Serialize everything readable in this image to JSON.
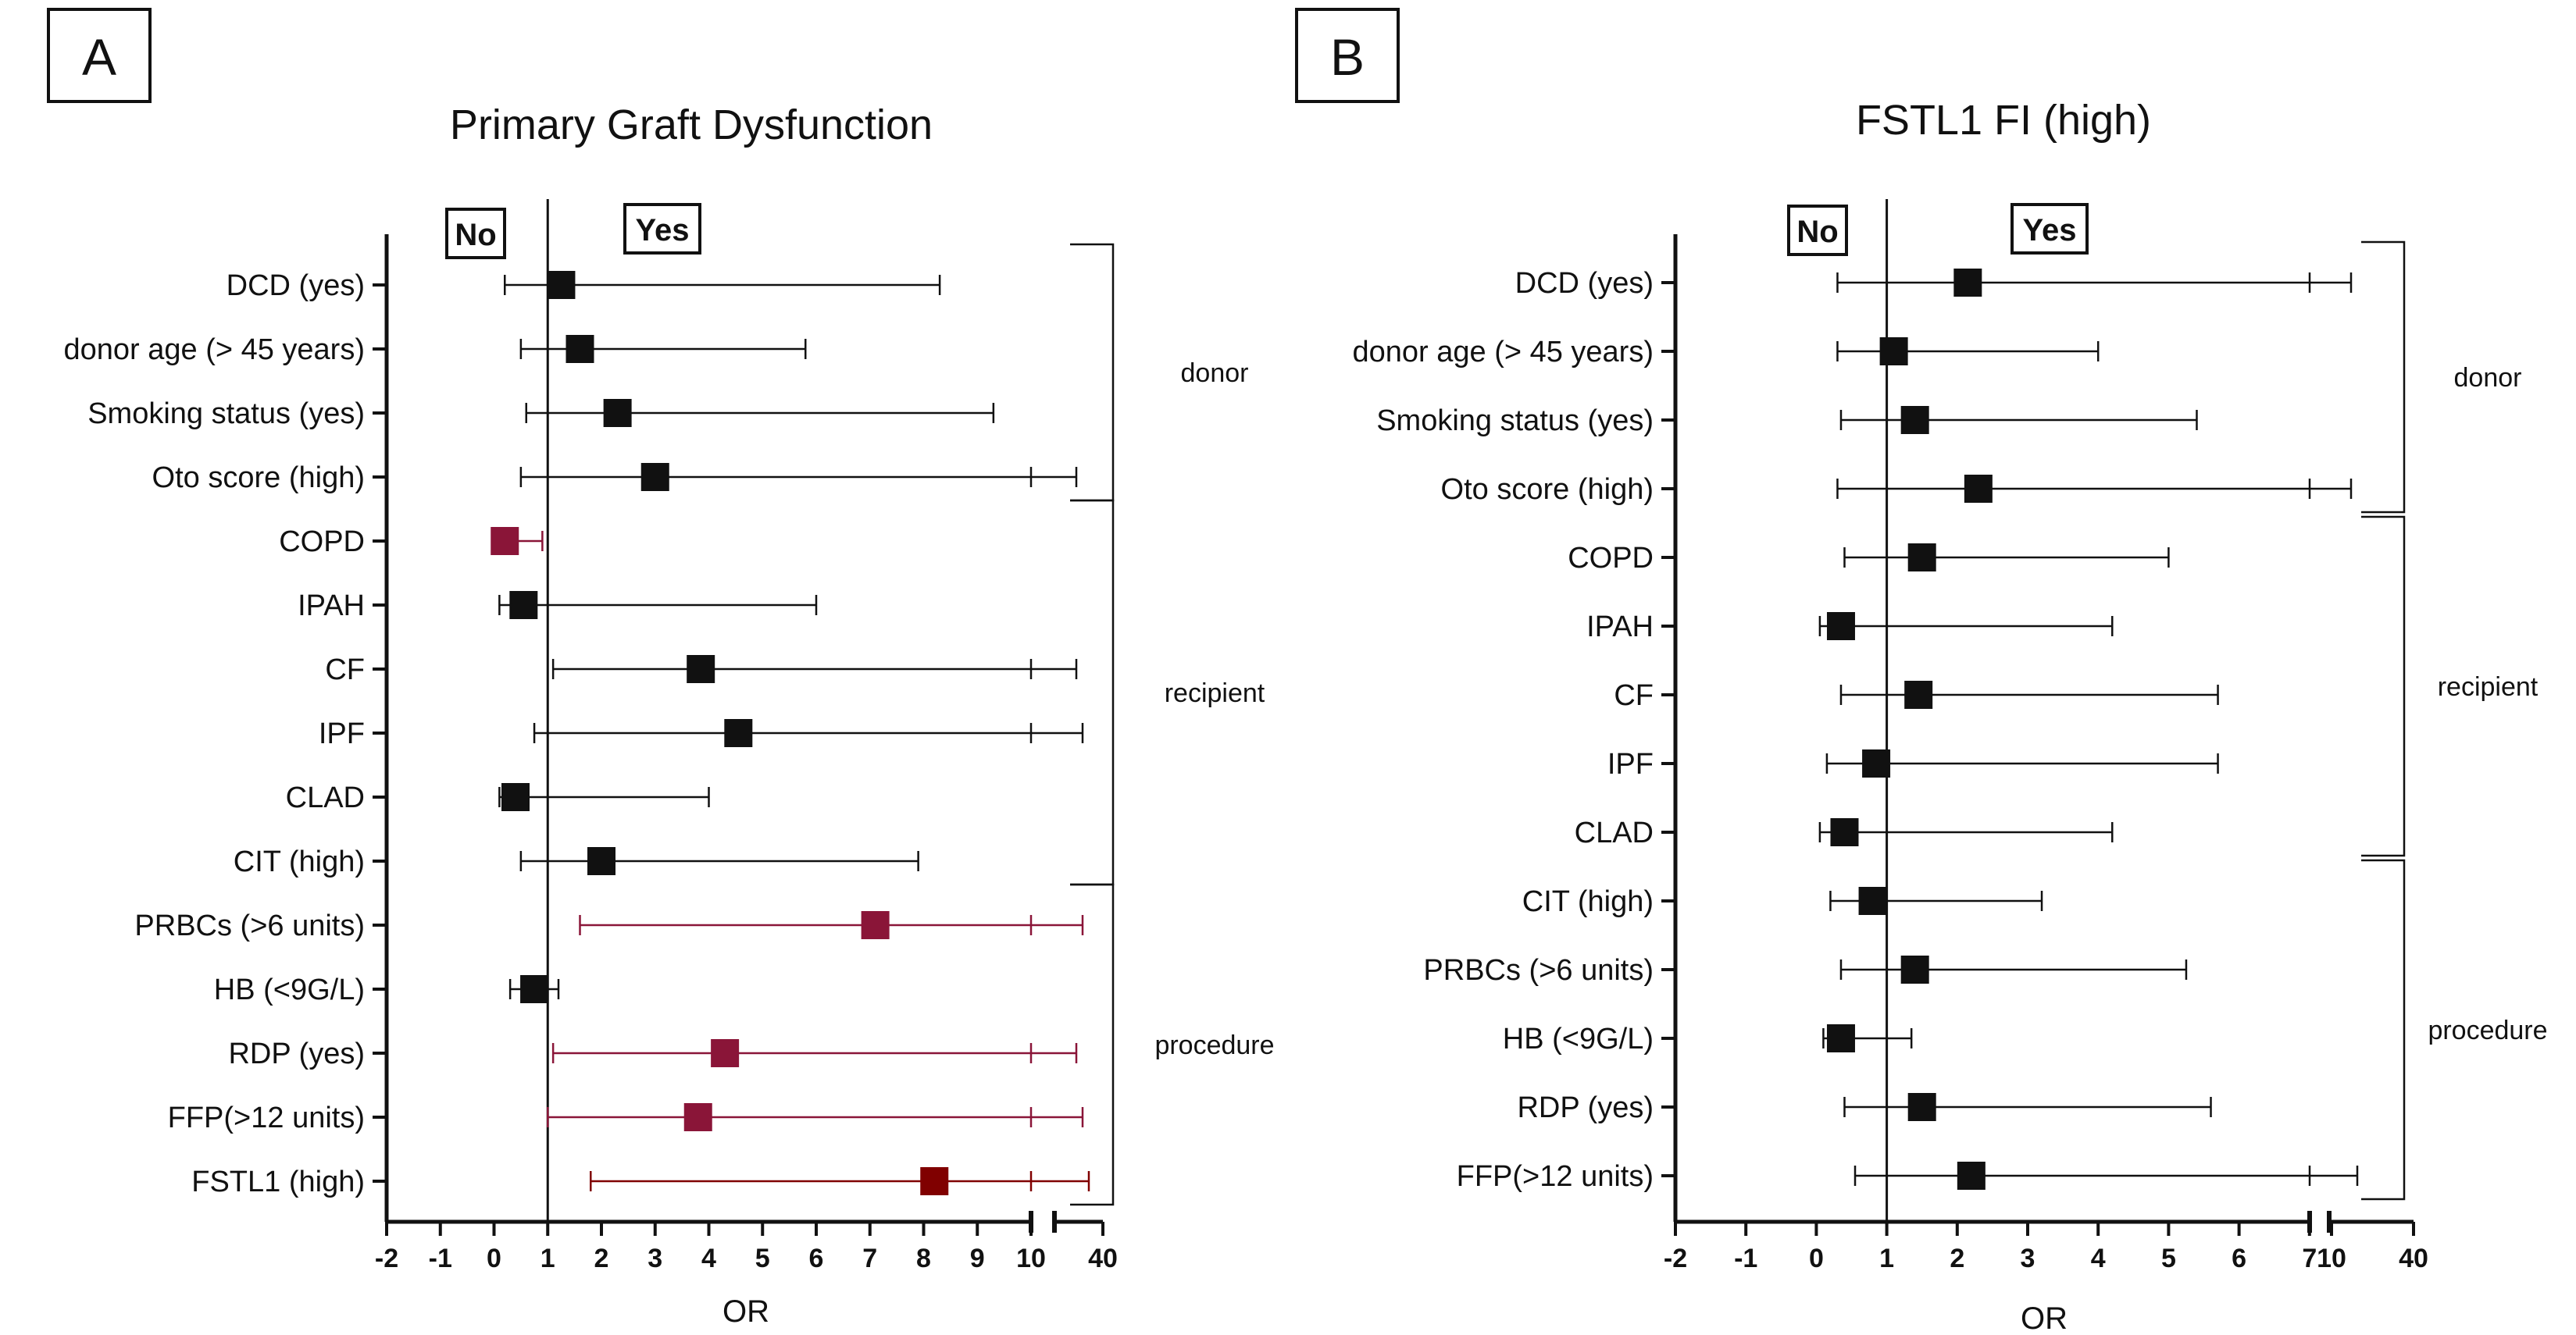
{
  "colors": {
    "black": "#111111",
    "highlight": "#8a1538",
    "highlight_dark": "#800000"
  },
  "panels": [
    {
      "id": "A",
      "letter": "A",
      "title": "Primary Graft Dysfunction",
      "no_label": "No",
      "yes_label": "Yes",
      "xlabel": "OR",
      "ticks_main": [
        "-2",
        "-1",
        "0",
        "1",
        "2",
        "3",
        "4",
        "5",
        "6",
        "7",
        "8",
        "9",
        "10"
      ],
      "ticks_ext": [
        "40"
      ],
      "groups": [
        {
          "label": "donor",
          "first": 0,
          "last": 3
        },
        {
          "label": "recipient",
          "first": 4,
          "last": 9
        },
        {
          "label": "procedure",
          "first": 10,
          "last": 14
        }
      ]
    },
    {
      "id": "B",
      "letter": "B",
      "title": "FSTL1 FI (high)",
      "no_label": "No",
      "yes_label": "Yes",
      "xlabel": "OR",
      "ticks_main": [
        "-2",
        "-1",
        "0",
        "1",
        "2",
        "3",
        "4",
        "5",
        "6",
        "7"
      ],
      "ticks_ext": [
        "10",
        "40"
      ],
      "groups": [
        {
          "label": "donor",
          "first": 0,
          "last": 3
        },
        {
          "label": "recipient",
          "first": 4,
          "last": 8
        },
        {
          "label": "procedure",
          "first": 9,
          "last": 13
        }
      ]
    }
  ],
  "chart_data": [
    {
      "type": "forest",
      "title": "Primary Graft Dysfunction",
      "xlabel": "OR",
      "xlim": [
        -2,
        10
      ],
      "x_break": [
        10,
        40
      ],
      "reference_line": 1,
      "rows": [
        {
          "label": "DCD (yes)",
          "or": 1.25,
          "lo": 0.2,
          "hi": 8.3,
          "hi_arrow": false,
          "color": "black"
        },
        {
          "label": "donor age (> 45 years)",
          "or": 1.6,
          "lo": 0.5,
          "hi": 5.8,
          "hi_arrow": false,
          "color": "black"
        },
        {
          "label": "Smoking status (yes)",
          "or": 2.3,
          "lo": 0.6,
          "hi": 9.3,
          "hi_arrow": false,
          "color": "black"
        },
        {
          "label": "Oto score (high)",
          "or": 3.0,
          "lo": 0.5,
          "hi": 10,
          "hi_arrow": true,
          "color": "black"
        },
        {
          "label": "COPD",
          "or": 0.2,
          "lo": 0.05,
          "hi": 0.9,
          "hi_arrow": false,
          "color": "highlight"
        },
        {
          "label": "IPAH",
          "or": 0.55,
          "lo": 0.1,
          "hi": 6.0,
          "hi_arrow": false,
          "color": "black"
        },
        {
          "label": "CF",
          "or": 3.85,
          "lo": 1.1,
          "hi": 10,
          "hi_arrow": true,
          "color": "black"
        },
        {
          "label": "IPF",
          "or": 4.55,
          "lo": 0.75,
          "hi": 10,
          "hi_arrow": true,
          "color": "black"
        },
        {
          "label": "CLAD",
          "or": 0.4,
          "lo": 0.1,
          "hi": 4.0,
          "hi_arrow": false,
          "color": "black"
        },
        {
          "label": "CIT (high)",
          "or": 2.0,
          "lo": 0.5,
          "hi": 7.9,
          "hi_arrow": false,
          "color": "black"
        },
        {
          "label": "PRBCs (>6 units)",
          "or": 7.1,
          "lo": 1.6,
          "hi": 10,
          "hi_arrow": true,
          "color": "highlight"
        },
        {
          "label": "HB (<9G/L)",
          "or": 0.75,
          "lo": 0.3,
          "hi": 1.2,
          "hi_arrow": false,
          "color": "black"
        },
        {
          "label": "RDP (yes)",
          "or": 4.3,
          "lo": 1.1,
          "hi": 10,
          "hi_arrow": true,
          "color": "highlight"
        },
        {
          "label": "FFP(>12 units)",
          "or": 3.8,
          "lo": 1.0,
          "hi": 10,
          "hi_arrow": true,
          "color": "highlight"
        },
        {
          "label": "FSTL1 (high)",
          "or": 8.2,
          "lo": 1.8,
          "hi": 10,
          "hi_arrow": true,
          "color": "highlight_dark"
        }
      ]
    },
    {
      "type": "forest",
      "title": "FSTL1 FI (high)",
      "xlabel": "OR",
      "xlim": [
        -2,
        7
      ],
      "x_break": [
        10,
        40
      ],
      "reference_line": 1,
      "rows": [
        {
          "label": "DCD (yes)",
          "or": 2.15,
          "lo": 0.3,
          "hi": 7,
          "hi_arrow": true,
          "color": "black"
        },
        {
          "label": "donor age (> 45 years)",
          "or": 1.1,
          "lo": 0.3,
          "hi": 4.0,
          "hi_arrow": false,
          "color": "black"
        },
        {
          "label": "Smoking status (yes)",
          "or": 1.4,
          "lo": 0.35,
          "hi": 5.4,
          "hi_arrow": false,
          "color": "black"
        },
        {
          "label": "Oto score (high)",
          "or": 2.3,
          "lo": 0.3,
          "hi": 7,
          "hi_arrow": true,
          "color": "black"
        },
        {
          "label": "COPD",
          "or": 1.5,
          "lo": 0.4,
          "hi": 5.0,
          "hi_arrow": false,
          "color": "black"
        },
        {
          "label": "IPAH",
          "or": 0.35,
          "lo": 0.05,
          "hi": 4.2,
          "hi_arrow": false,
          "color": "black"
        },
        {
          "label": "CF",
          "or": 1.45,
          "lo": 0.35,
          "hi": 5.7,
          "hi_arrow": false,
          "color": "black"
        },
        {
          "label": "IPF",
          "or": 0.85,
          "lo": 0.15,
          "hi": 5.7,
          "hi_arrow": false,
          "color": "black"
        },
        {
          "label": "CLAD",
          "or": 0.4,
          "lo": 0.05,
          "hi": 4.2,
          "hi_arrow": false,
          "color": "black"
        },
        {
          "label": "CIT (high)",
          "or": 0.8,
          "lo": 0.2,
          "hi": 3.2,
          "hi_arrow": false,
          "color": "black"
        },
        {
          "label": "PRBCs (>6 units)",
          "or": 1.4,
          "lo": 0.35,
          "hi": 5.25,
          "hi_arrow": false,
          "color": "black"
        },
        {
          "label": "HB (<9G/L)",
          "or": 0.35,
          "lo": 0.1,
          "hi": 1.35,
          "hi_arrow": false,
          "color": "black"
        },
        {
          "label": "RDP (yes)",
          "or": 1.5,
          "lo": 0.4,
          "hi": 5.6,
          "hi_arrow": false,
          "color": "black"
        },
        {
          "label": "FFP(>12 units)",
          "or": 2.2,
          "lo": 0.55,
          "hi": 7,
          "hi_arrow": true,
          "color": "black"
        }
      ]
    }
  ]
}
